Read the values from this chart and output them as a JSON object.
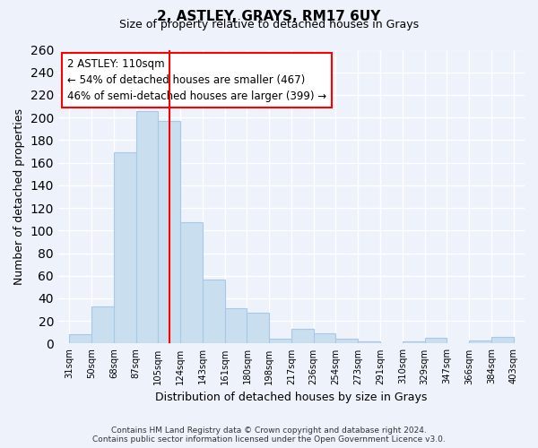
{
  "title": "2, ASTLEY, GRAYS, RM17 6UY",
  "subtitle": "Size of property relative to detached houses in Grays",
  "xlabel": "Distribution of detached houses by size in Grays",
  "ylabel": "Number of detached properties",
  "bin_edges": [
    "31sqm",
    "50sqm",
    "68sqm",
    "87sqm",
    "105sqm",
    "124sqm",
    "143sqm",
    "161sqm",
    "180sqm",
    "198sqm",
    "217sqm",
    "236sqm",
    "254sqm",
    "273sqm",
    "291sqm",
    "310sqm",
    "329sqm",
    "347sqm",
    "366sqm",
    "384sqm",
    "403sqm"
  ],
  "values": [
    8,
    33,
    169,
    206,
    197,
    107,
    57,
    31,
    27,
    4,
    13,
    9,
    4,
    2,
    0,
    2,
    5,
    0,
    3,
    6
  ],
  "bar_color": "#c9dff0",
  "bar_edge_color": "#a8c8e8",
  "vline_x": 4.5,
  "vline_color": "red",
  "annotation_text": "2 ASTLEY: 110sqm\n← 54% of detached houses are smaller (467)\n46% of semi-detached houses are larger (399) →",
  "annotation_box_color": "white",
  "annotation_box_edge_color": "red",
  "ylim": [
    0,
    260
  ],
  "yticks": [
    0,
    20,
    40,
    60,
    80,
    100,
    120,
    140,
    160,
    180,
    200,
    220,
    240,
    260
  ],
  "footer_text": "Contains HM Land Registry data © Crown copyright and database right 2024.\nContains public sector information licensed under the Open Government Licence v3.0.",
  "bg_color": "#eef2fb"
}
